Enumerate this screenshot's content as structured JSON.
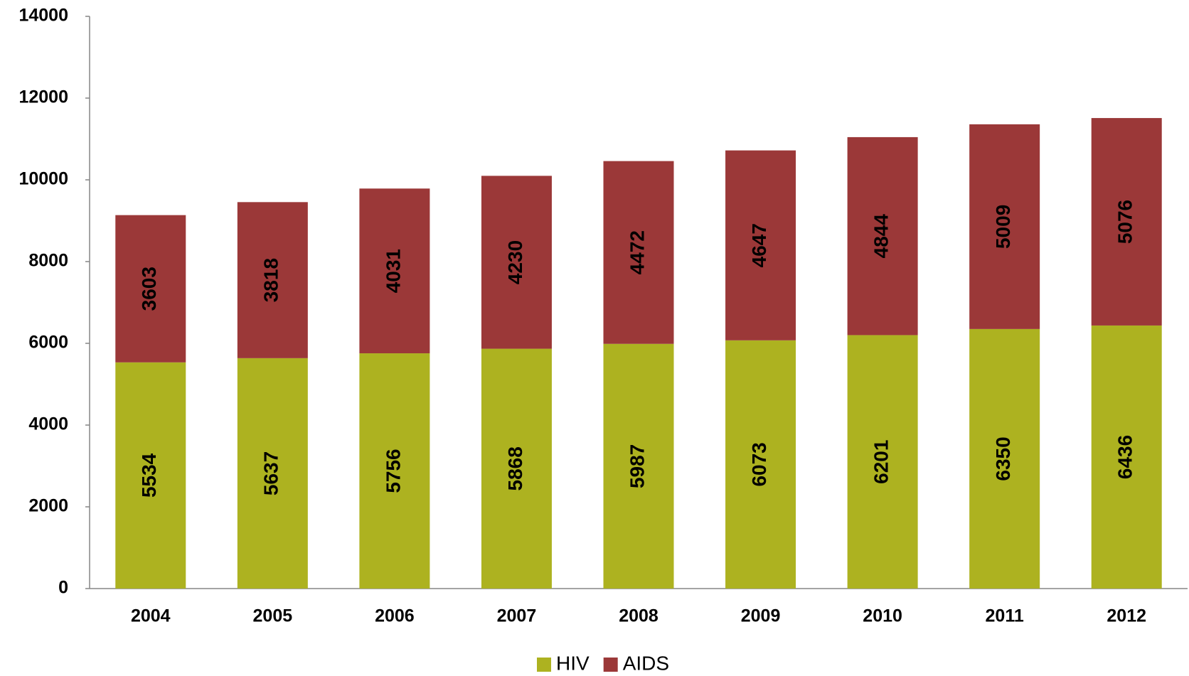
{
  "chart_data": {
    "type": "bar",
    "stacked": true,
    "categories": [
      "2004",
      "2005",
      "2006",
      "2007",
      "2008",
      "2009",
      "2010",
      "2011",
      "2012"
    ],
    "series": [
      {
        "name": "HIV",
        "color": "#adb220",
        "values": [
          5534,
          5637,
          5756,
          5868,
          5987,
          6073,
          6201,
          6350,
          6436
        ]
      },
      {
        "name": "AIDS",
        "color": "#9b3838",
        "values": [
          3603,
          3818,
          4031,
          4230,
          4472,
          4647,
          4844,
          5009,
          5076
        ]
      }
    ],
    "ylim": [
      0,
      14000
    ],
    "yticks": [
      0,
      2000,
      4000,
      6000,
      8000,
      10000,
      12000,
      14000
    ],
    "grid": false,
    "legend": "bottom",
    "data_labels": true
  }
}
